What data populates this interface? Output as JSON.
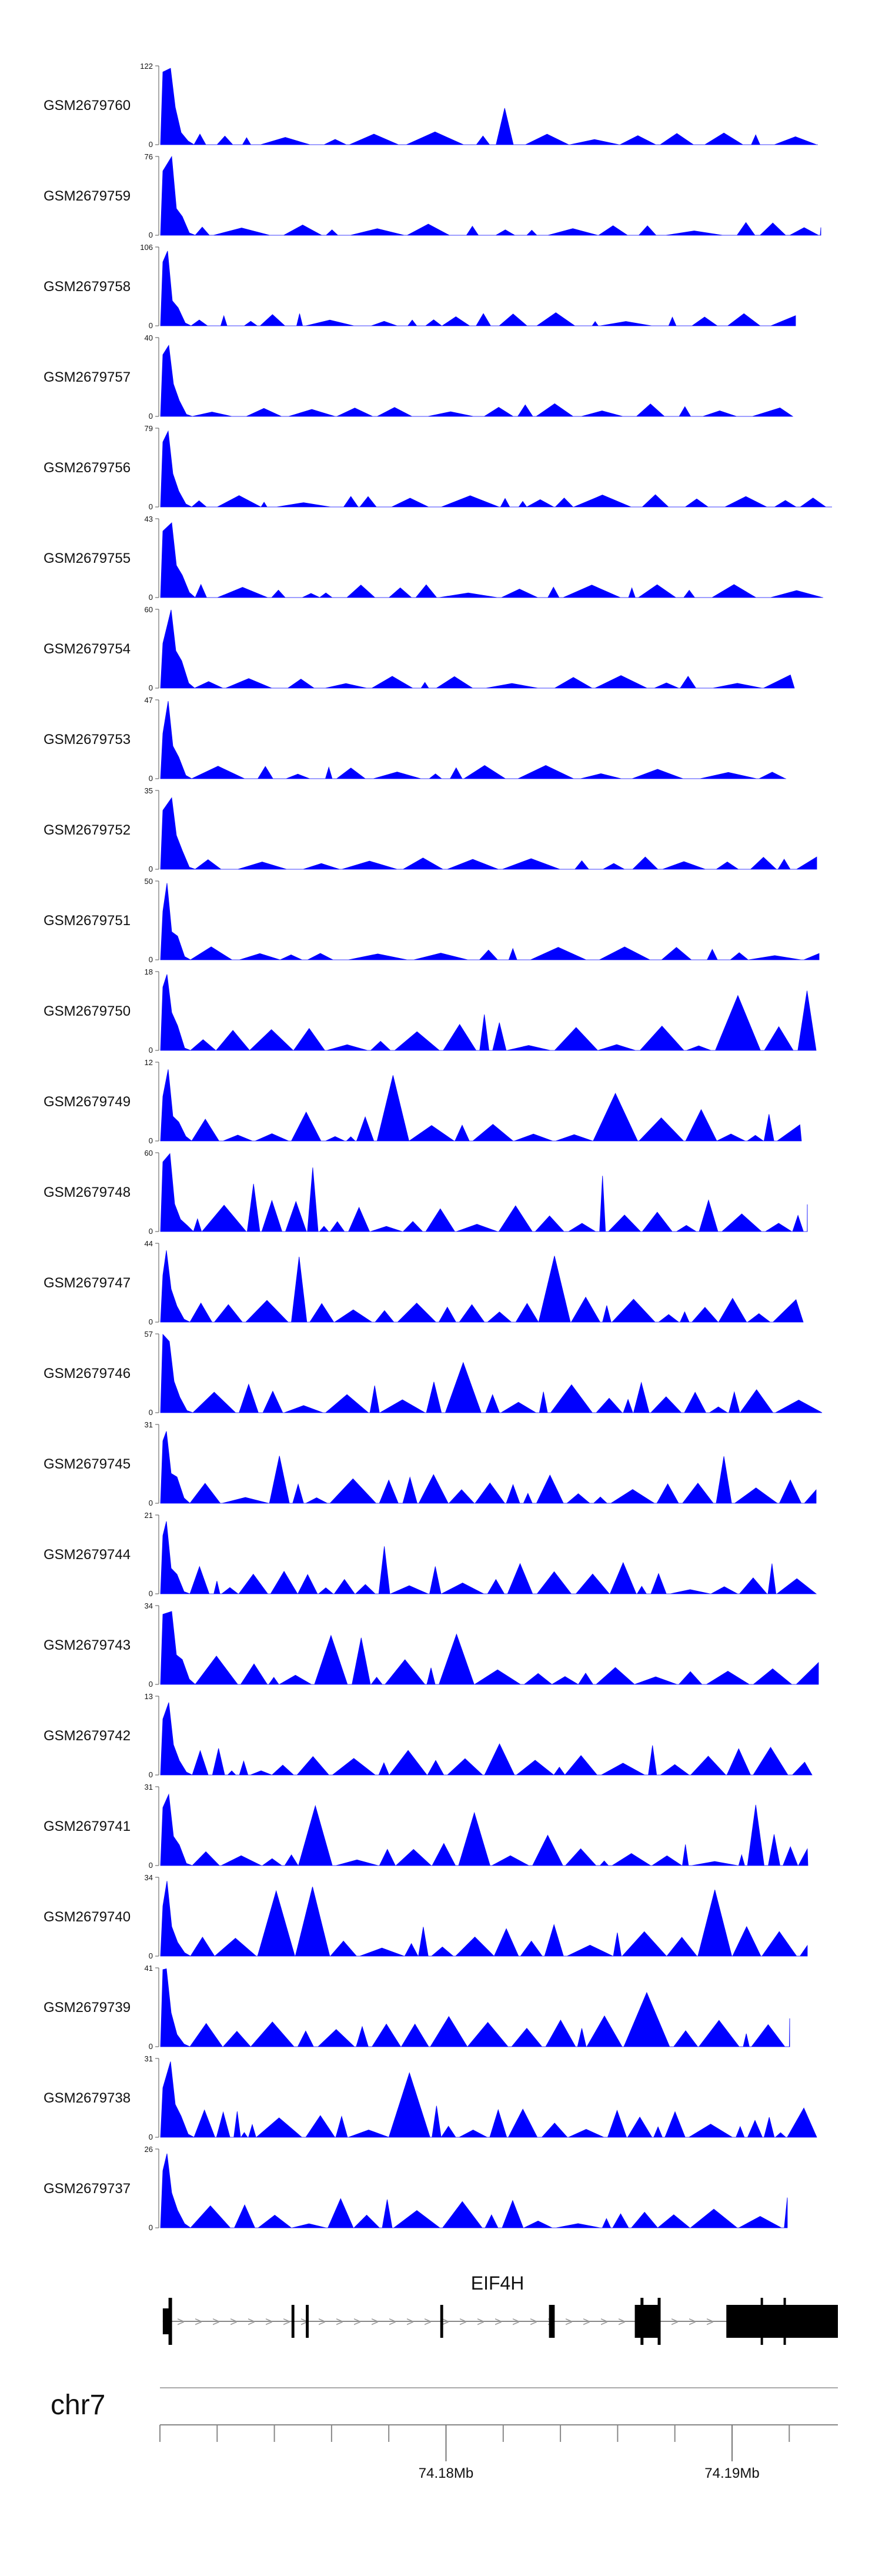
{
  "chart_data": {
    "type": "area",
    "title": "",
    "fill_color": "#0000ff",
    "x_range": [
      74.17,
      74.1937
    ],
    "x_unit": "Mb",
    "tracks": [
      {
        "name": "GSM2679760",
        "max": 122,
        "min": 0
      },
      {
        "name": "GSM2679759",
        "max": 76,
        "min": 0
      },
      {
        "name": "GSM2679758",
        "max": 106,
        "min": 0
      },
      {
        "name": "GSM2679757",
        "max": 40,
        "min": 0
      },
      {
        "name": "GSM2679756",
        "max": 79,
        "min": 0
      },
      {
        "name": "GSM2679755",
        "max": 43,
        "min": 0
      },
      {
        "name": "GSM2679754",
        "max": 60,
        "min": 0
      },
      {
        "name": "GSM2679753",
        "max": 47,
        "min": 0
      },
      {
        "name": "GSM2679752",
        "max": 35,
        "min": 0
      },
      {
        "name": "GSM2679751",
        "max": 50,
        "min": 0
      },
      {
        "name": "GSM2679750",
        "max": 18,
        "min": 0
      },
      {
        "name": "GSM2679749",
        "max": 12,
        "min": 0
      },
      {
        "name": "GSM2679748",
        "max": 60,
        "min": 0
      },
      {
        "name": "GSM2679747",
        "max": 44,
        "min": 0
      },
      {
        "name": "GSM2679746",
        "max": 57,
        "min": 0
      },
      {
        "name": "GSM2679745",
        "max": 31,
        "min": 0
      },
      {
        "name": "GSM2679744",
        "max": 21,
        "min": 0
      },
      {
        "name": "GSM2679743",
        "max": 34,
        "min": 0
      },
      {
        "name": "GSM2679742",
        "max": 13,
        "min": 0
      },
      {
        "name": "GSM2679741",
        "max": 31,
        "min": 0
      },
      {
        "name": "GSM2679740",
        "max": 34,
        "min": 0
      },
      {
        "name": "GSM2679739",
        "max": 41,
        "min": 0
      },
      {
        "name": "GSM2679738",
        "max": 31,
        "min": 0
      },
      {
        "name": "GSM2679737",
        "max": 26,
        "min": 0
      }
    ],
    "gene": {
      "name": "EIF4H",
      "intron_arrow_symbol": ">",
      "exons": [
        {
          "start": 74.1701,
          "end": 74.1704,
          "type": "utr"
        },
        {
          "start": 74.1746,
          "end": 74.1747,
          "type": "coding"
        },
        {
          "start": 74.1751,
          "end": 74.1752,
          "type": "coding"
        },
        {
          "start": 74.1798,
          "end": 74.1799,
          "type": "coding"
        },
        {
          "start": 74.1836,
          "end": 74.1838,
          "type": "coding"
        },
        {
          "start": 74.1866,
          "end": 74.1875,
          "type": "coding"
        },
        {
          "start": 74.1898,
          "end": 74.1937,
          "type": "coding"
        }
      ]
    },
    "chromosome": "chr7",
    "tick_labels": [
      {
        "pos": 74.18,
        "label": "74.18Mb"
      },
      {
        "pos": 74.19,
        "label": "74.19Mb"
      }
    ],
    "minor_tick_step": 0.002
  }
}
